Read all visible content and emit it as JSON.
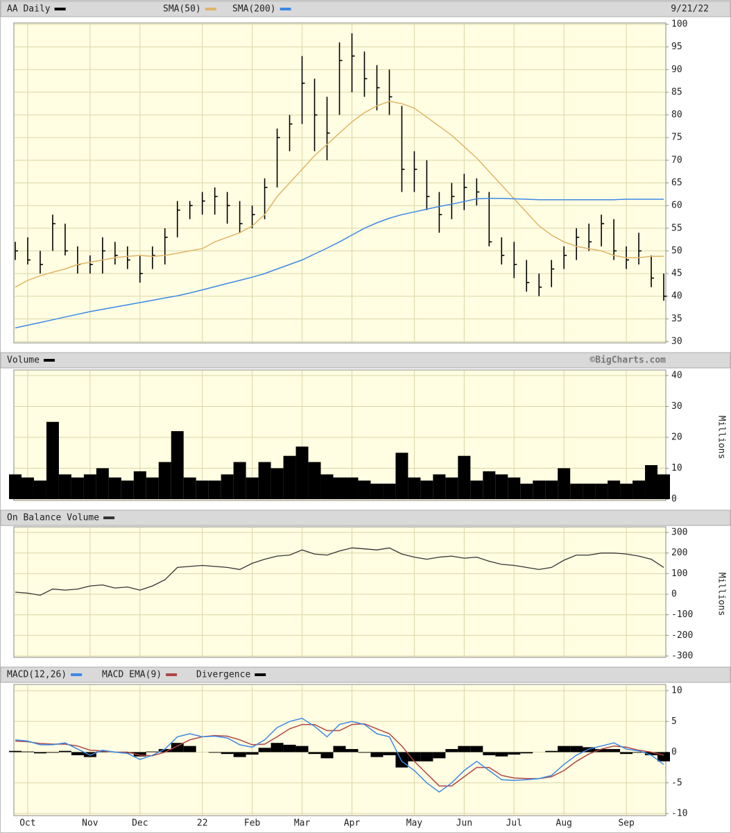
{
  "chart_data": [
    {
      "type": "stock",
      "date": "9/21/22",
      "series": [
        {
          "name": "AA Daily",
          "color": "#000000",
          "high": [
            52,
            53,
            50,
            58,
            56,
            51,
            49,
            53,
            52,
            51,
            49,
            51,
            55,
            61,
            61,
            63,
            64,
            63,
            61,
            60,
            66,
            77,
            80,
            93,
            88,
            84,
            96,
            98,
            94,
            91,
            90,
            82,
            72,
            70,
            63,
            65,
            67,
            66,
            63,
            53,
            52,
            48,
            45,
            48,
            51,
            55,
            56,
            58,
            57,
            51,
            54,
            49,
            45
          ],
          "low": [
            48,
            47,
            45,
            50,
            49,
            45,
            45,
            45,
            47,
            46,
            43,
            46,
            47,
            53,
            57,
            58,
            58,
            56,
            54,
            55,
            57,
            64,
            72,
            78,
            72,
            70,
            80,
            85,
            84,
            81,
            80,
            63,
            63,
            59,
            54,
            57,
            59,
            60,
            51,
            47,
            44,
            41,
            40,
            42,
            46,
            48,
            50,
            51,
            48,
            46,
            47,
            42,
            39
          ],
          "close": [
            50,
            48,
            47,
            56,
            50,
            47,
            47,
            50,
            49,
            48,
            45,
            49,
            53,
            59,
            60,
            61,
            62,
            60,
            56,
            58,
            64,
            75,
            78,
            87,
            80,
            76,
            92,
            93,
            88,
            86,
            84,
            68,
            68,
            62,
            58,
            62,
            64,
            63,
            52,
            49,
            47,
            43,
            42,
            46,
            49,
            53,
            52,
            56,
            50,
            48,
            50,
            44,
            40
          ]
        },
        {
          "name": "SMA(50)",
          "color": "#e0b466",
          "values": [
            42,
            43.5,
            44.5,
            45.3,
            46,
            47,
            47.5,
            48,
            48.5,
            48.8,
            49,
            48.8,
            49,
            49.5,
            50,
            50.5,
            52,
            53,
            54,
            55.5,
            58,
            62,
            65,
            68,
            71,
            73.5,
            76,
            78.5,
            80.5,
            82,
            83,
            82.5,
            81.5,
            79.5,
            77.5,
            75.5,
            73,
            70.5,
            67.5,
            64.5,
            61.5,
            58.5,
            55.5,
            53.5,
            52,
            51,
            50.5,
            50,
            49,
            48.5,
            48.5,
            48.8,
            48.8
          ]
        },
        {
          "name": "SMA(200)",
          "color": "#3b88e6",
          "values": [
            33,
            33.6,
            34.2,
            34.8,
            35.4,
            36,
            36.6,
            37.1,
            37.6,
            38.1,
            38.6,
            39.1,
            39.6,
            40.1,
            40.7,
            41.4,
            42.1,
            42.8,
            43.5,
            44.2,
            45,
            46,
            47,
            48,
            49.3,
            50.6,
            52,
            53.5,
            55,
            56.2,
            57.2,
            58,
            58.6,
            59.2,
            59.8,
            60.3,
            60.9,
            61.5,
            61.6,
            61.6,
            61.5,
            61.4,
            61.3,
            61.3,
            61.3,
            61.3,
            61.3,
            61.3,
            61.3,
            61.4,
            61.4,
            61.4,
            61.4
          ]
        }
      ],
      "ylim": [
        30,
        100
      ],
      "yticks": [
        30,
        35,
        40,
        45,
        50,
        55,
        60,
        65,
        70,
        75,
        80,
        85,
        90,
        95,
        100
      ],
      "grid": true
    },
    {
      "type": "bar",
      "credit": "©BigCharts.com",
      "y_label": "Millions",
      "series": [
        {
          "name": "Volume",
          "color": "#000000",
          "values": [
            8,
            7,
            6,
            25,
            8,
            7,
            8,
            10,
            7,
            6,
            9,
            7,
            12,
            22,
            7,
            6,
            6,
            8,
            12,
            7,
            12,
            10,
            14,
            17,
            12,
            8,
            7,
            7,
            6,
            5,
            5,
            15,
            7,
            6,
            8,
            7,
            14,
            6,
            9,
            8,
            7,
            5,
            6,
            6,
            10,
            5,
            5,
            5,
            6,
            5,
            6,
            11,
            8
          ]
        }
      ],
      "ylim": [
        0,
        40
      ],
      "yticks": [
        0,
        10,
        20,
        30,
        40
      ],
      "grid": true
    },
    {
      "type": "line",
      "y_label": "Millions",
      "series": [
        {
          "name": "On Balance Volume",
          "color": "#333333",
          "values": [
            10,
            5,
            -5,
            25,
            20,
            25,
            40,
            45,
            30,
            35,
            20,
            40,
            70,
            130,
            135,
            140,
            135,
            130,
            120,
            150,
            170,
            185,
            190,
            215,
            195,
            190,
            210,
            225,
            220,
            215,
            225,
            195,
            180,
            170,
            180,
            185,
            175,
            180,
            160,
            145,
            140,
            130,
            120,
            130,
            165,
            190,
            190,
            200,
            200,
            195,
            185,
            170,
            130
          ]
        }
      ],
      "ylim": [
        -300,
        300
      ],
      "yticks": [
        -300,
        -200,
        -100,
        0,
        100,
        200,
        300
      ],
      "grid": true
    },
    {
      "type": "macd",
      "categories": [
        null,
        "Oct",
        null,
        null,
        null,
        null,
        "Nov",
        null,
        null,
        null,
        "Dec",
        null,
        null,
        null,
        null,
        "22",
        null,
        null,
        null,
        "Feb",
        null,
        null,
        null,
        "Mar",
        null,
        null,
        null,
        "Apr",
        null,
        null,
        null,
        null,
        "May",
        null,
        null,
        null,
        "Jun",
        null,
        null,
        null,
        "Jul",
        null,
        null,
        null,
        "Aug",
        null,
        null,
        null,
        null,
        "Sep",
        null,
        null,
        null
      ],
      "series": [
        {
          "name": "MACD(12,26)",
          "color": "#3b88e6",
          "values": [
            2,
            1.8,
            1.2,
            1.2,
            1.5,
            0.5,
            -0.5,
            0.3,
            0,
            -0.2,
            -1.2,
            -0.5,
            0.5,
            2.5,
            3,
            2.5,
            2.6,
            2.3,
            1.2,
            0.8,
            2,
            4,
            5,
            5.5,
            4.2,
            2.5,
            4.5,
            5,
            4.5,
            3,
            2.5,
            -1.5,
            -3,
            -5,
            -6.5,
            -5,
            -3,
            -1.5,
            -3,
            -4.5,
            -4.6,
            -4.5,
            -4.3,
            -3.8,
            -2,
            -0.5,
            0.5,
            1,
            1.5,
            0.5,
            0.2,
            -0.5,
            -2
          ]
        },
        {
          "name": "MACD EMA(9)",
          "color": "#b04444",
          "values": [
            1.8,
            1.7,
            1.4,
            1.3,
            1.3,
            1,
            0.3,
            0.2,
            0,
            0,
            -0.5,
            -0.6,
            0,
            1,
            2,
            2.5,
            2.7,
            2.6,
            2,
            1.2,
            1.3,
            2.5,
            3.8,
            4.5,
            4.5,
            3.5,
            3.5,
            4.5,
            4.6,
            3.8,
            3,
            1,
            -1.5,
            -3.5,
            -5.5,
            -5.5,
            -4,
            -2.5,
            -2.5,
            -3.8,
            -4.2,
            -4.3,
            -4.3,
            -4,
            -3,
            -1.5,
            -0.3,
            0.5,
            1,
            0.8,
            0.3,
            0,
            -0.5
          ]
        },
        {
          "name": "Divergence",
          "color": "#000000",
          "values": [
            0.2,
            0.1,
            -0.2,
            -0.1,
            0.2,
            -0.5,
            -0.8,
            0.1,
            0,
            -0.2,
            -0.7,
            0.1,
            0.5,
            1.5,
            1,
            0,
            -0.1,
            -0.3,
            -0.8,
            -0.4,
            0.7,
            1.5,
            1.2,
            1,
            -0.3,
            -1,
            1,
            0.5,
            -0.1,
            -0.8,
            -0.5,
            -2.5,
            -1.5,
            -1.5,
            -1,
            0.5,
            1,
            1,
            -0.5,
            -0.7,
            -0.4,
            -0.2,
            0,
            0.2,
            1,
            1,
            0.8,
            0.5,
            0.5,
            -0.3,
            -0.1,
            -0.5,
            -1.5
          ]
        }
      ],
      "ylim": [
        -10,
        10
      ],
      "yticks": [
        -10,
        -5,
        0,
        5,
        10
      ],
      "grid": true
    }
  ]
}
